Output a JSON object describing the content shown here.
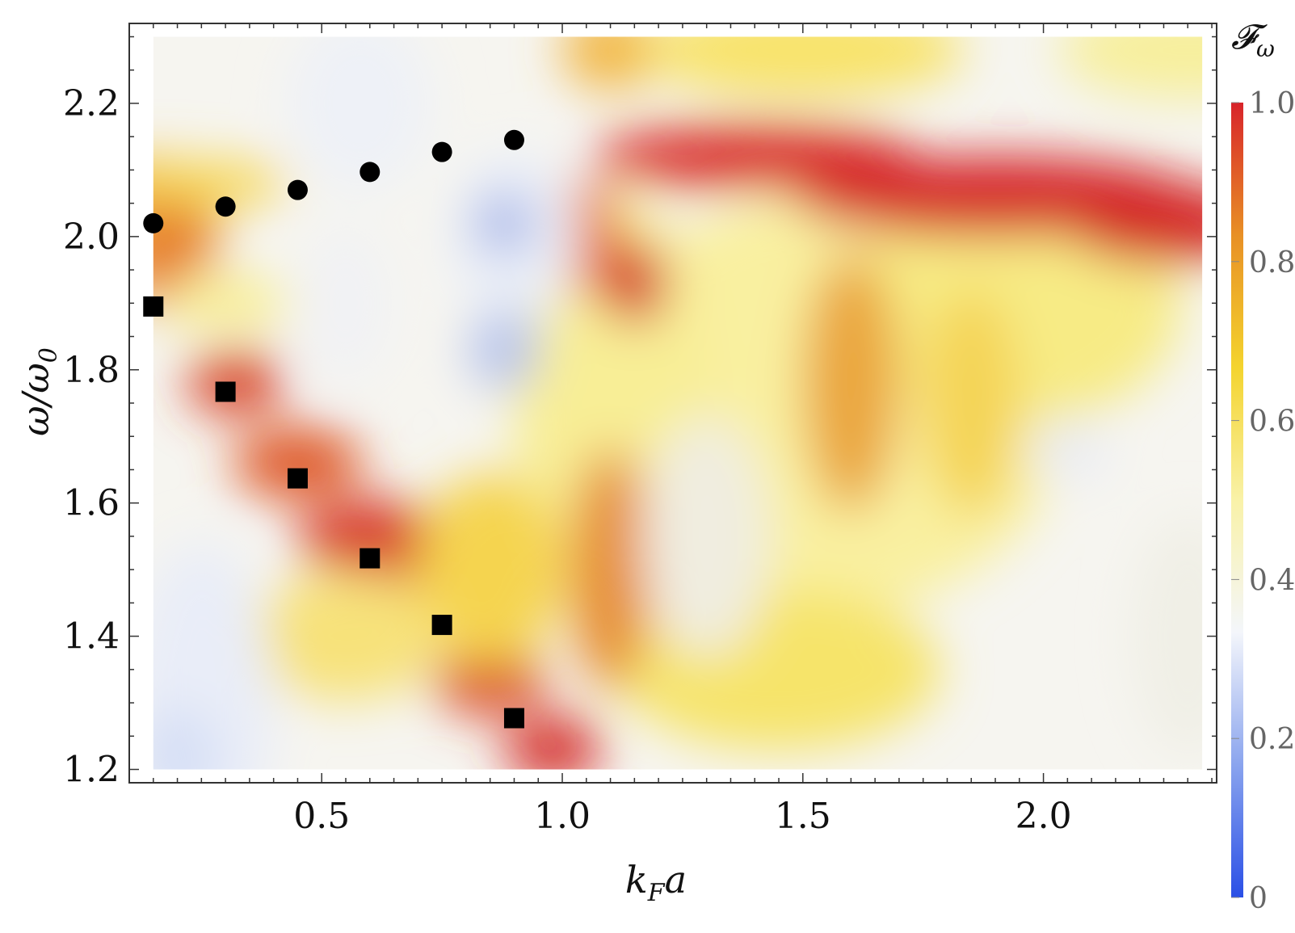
{
  "chart_data": {
    "type": "heatmap",
    "xlabel": "k_F a",
    "ylabel": "ω/ω_0",
    "xlim": [
      0.1,
      2.36
    ],
    "ylim": [
      1.18,
      2.32
    ],
    "x_ticks": [
      0.5,
      1.0,
      1.5,
      2.0
    ],
    "x_tick_labels": [
      "0.5",
      "1.0",
      "1.5",
      "2.0"
    ],
    "y_ticks": [
      1.2,
      1.4,
      1.6,
      1.8,
      2.0,
      2.2
    ],
    "y_tick_labels": [
      "1.2",
      "1.4",
      "1.6",
      "1.8",
      "2.0",
      "2.2"
    ],
    "colorbar": {
      "title": "𝓕_ω",
      "range": [
        0,
        1
      ],
      "ticks": [
        0,
        0.2,
        0.4,
        0.6,
        0.8,
        1.0
      ],
      "tick_labels": [
        "0",
        "0.2",
        "0.4",
        "0.6",
        "0.8",
        "1.0"
      ],
      "colors": [
        "#2a4fe6",
        "#8aa4ee",
        "#f4f6fb",
        "#f9f2a8",
        "#f4d42e",
        "#e89026",
        "#d8242a"
      ]
    },
    "heatmap_extent": {
      "x": [
        0.15,
        2.33
      ],
      "y": [
        1.2,
        2.3
      ]
    },
    "series": [
      {
        "marker": "circle",
        "x": [
          0.15,
          0.3,
          0.45,
          0.6,
          0.75,
          0.9
        ],
        "y": [
          2.02,
          2.045,
          2.07,
          2.097,
          2.127,
          2.145
        ]
      },
      {
        "marker": "square",
        "x": [
          0.15,
          0.3,
          0.45,
          0.6,
          0.75,
          0.9
        ],
        "y": [
          1.895,
          1.767,
          1.637,
          1.517,
          1.417,
          1.277
        ]
      }
    ]
  }
}
